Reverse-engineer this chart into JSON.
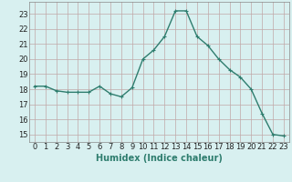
{
  "x": [
    0,
    1,
    2,
    3,
    4,
    5,
    6,
    7,
    8,
    9,
    10,
    11,
    12,
    13,
    14,
    15,
    16,
    17,
    18,
    19,
    20,
    21,
    22,
    23
  ],
  "y": [
    18.2,
    18.2,
    17.9,
    17.8,
    17.8,
    17.8,
    18.2,
    17.7,
    17.5,
    18.1,
    20.0,
    20.6,
    21.5,
    23.2,
    23.2,
    21.5,
    20.9,
    20.0,
    19.3,
    18.8,
    18.0,
    16.4,
    15.0,
    14.9
  ],
  "line_color": "#2e7d6e",
  "marker": "+",
  "marker_size": 3,
  "linewidth": 1.0,
  "bg_color": "#d8f0f0",
  "grid_color": "#c0a8a8",
  "xlabel": "Humidex (Indice chaleur)",
  "xlabel_fontsize": 7,
  "tick_fontsize": 6,
  "ylim": [
    14.5,
    23.8
  ],
  "yticks": [
    15,
    16,
    17,
    18,
    19,
    20,
    21,
    22,
    23
  ],
  "xlim": [
    -0.5,
    23.5
  ],
  "xticks": [
    0,
    1,
    2,
    3,
    4,
    5,
    6,
    7,
    8,
    9,
    10,
    11,
    12,
    13,
    14,
    15,
    16,
    17,
    18,
    19,
    20,
    21,
    22,
    23
  ]
}
